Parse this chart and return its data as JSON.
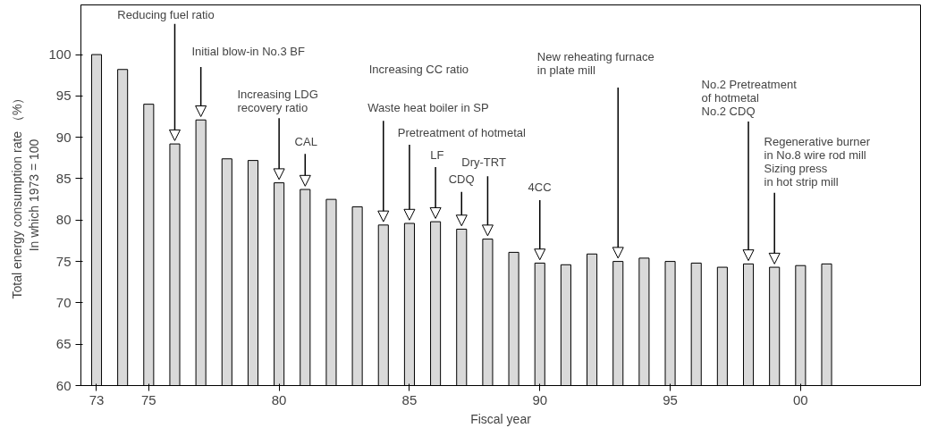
{
  "chart_data": {
    "type": "bar",
    "xlabel": "Fiscal year",
    "ylabel": "Total energy consumption rate （%）\nIn which 1973 = 100",
    "x": [
      1973,
      1974,
      1975,
      1976,
      1977,
      1978,
      1979,
      1980,
      1981,
      1982,
      1983,
      1984,
      1985,
      1986,
      1987,
      1988,
      1989,
      1990,
      1991,
      1992,
      1993,
      1994,
      1995,
      1996,
      1997,
      1998,
      1999,
      2000,
      2001
    ],
    "values": [
      100,
      98.2,
      94.0,
      89.2,
      92.1,
      87.4,
      87.2,
      84.5,
      83.7,
      82.5,
      81.6,
      79.4,
      79.6,
      79.8,
      78.9,
      77.7,
      76.1,
      74.8,
      74.6,
      75.9,
      75.0,
      75.4,
      75.0,
      74.8,
      74.3,
      74.7,
      74.3,
      74.5,
      74.7
    ],
    "color": "#d9d9d9",
    "xlim": [
      1972.4,
      2004.6
    ],
    "xticks": [
      {
        "value": 1973,
        "label": "73"
      },
      {
        "value": 1975,
        "label": "75"
      },
      {
        "value": 1980,
        "label": "80"
      },
      {
        "value": 1985,
        "label": "85"
      },
      {
        "value": 1990,
        "label": "90"
      },
      {
        "value": 1995,
        "label": "95"
      },
      {
        "value": 2000,
        "label": "00"
      }
    ],
    "ylim": [
      60,
      106
    ],
    "yticks": [
      60,
      65,
      70,
      75,
      80,
      85,
      90,
      95,
      100
    ],
    "grid": false,
    "annotations": [
      {
        "text": "Reducing fuel ratio",
        "x": 1976,
        "y": 89.2
      },
      {
        "text": "Initial blow-in No.3 BF",
        "x": 1977,
        "y": 92.1
      },
      {
        "text": "Increasing LDG\nrecovery ratio",
        "x": 1980,
        "y": 84.5
      },
      {
        "text": "CAL",
        "x": 1981,
        "y": 83.7
      },
      "Increasing CC ratio",
      {
        "text": "Waste heat boiler in SP",
        "x": 1984,
        "y": 79.4
      },
      {
        "text": "Pretreatment of hotmetal",
        "x": 1985,
        "y": 79.6
      },
      {
        "text": "LF",
        "x": 1986,
        "y": 79.8
      },
      {
        "text": "CDQ",
        "x": 1987,
        "y": 78.9
      },
      {
        "text": "Dry-TRT",
        "x": 1988,
        "y": 77.7
      },
      {
        "text": "4CC",
        "x": 1990,
        "y": 74.8
      },
      {
        "text": "New reheating furnace\nin plate mill",
        "x": 1993,
        "y": 75.0
      },
      {
        "text": "No.2 Pretreatment\nof hotmetal\nNo.2 CDQ",
        "x": 1998,
        "y": 74.7
      },
      {
        "text": "Regenerative burner\nin No.8 wire rod mill\nSizing press\nin hot strip mill",
        "x": 1999,
        "y": 74.3
      }
    ]
  }
}
